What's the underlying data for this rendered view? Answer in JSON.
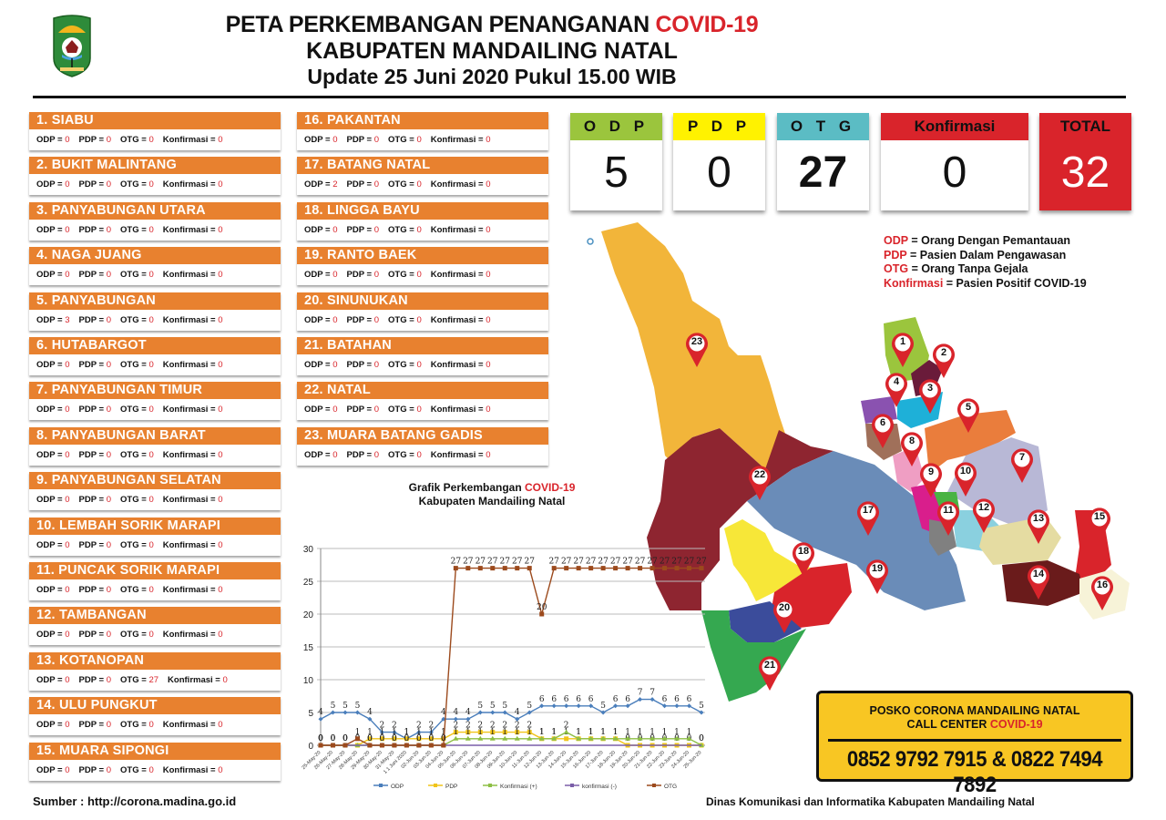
{
  "header": {
    "title_line1_prefix": "PETA PERKEMBANGAN PENANGANAN ",
    "title_line1_highlight": "COVID-19",
    "title_line2": "KABUPATEN MANDAILING NATAL",
    "title_line3": "Update 25 Juni  2020 Pukul 15.00 WIB",
    "logo": "kabupaten-mandailing-natal-emblem"
  },
  "stat_labels": {
    "odp": "ODP",
    "pdp": "PDP",
    "otg": "OTG",
    "konfirmasi": "Konfirmasi",
    "eq": " = "
  },
  "districts": [
    {
      "name": "1. SIABU",
      "odp": "0",
      "pdp": "0",
      "otg": "0",
      "konfirmasi": "0"
    },
    {
      "name": "2. BUKIT MALINTANG",
      "odp": "0",
      "pdp": "0",
      "otg": "0",
      "konfirmasi": "0"
    },
    {
      "name": "3. PANYABUNGAN UTARA",
      "odp": "0",
      "pdp": "0",
      "otg": "0",
      "konfirmasi": "0"
    },
    {
      "name": "4. NAGA JUANG",
      "odp": "0",
      "pdp": "0",
      "otg": "0",
      "konfirmasi": "0"
    },
    {
      "name": "5. PANYABUNGAN",
      "odp": "3",
      "pdp": "0",
      "otg": "0",
      "konfirmasi": "0"
    },
    {
      "name": "6. HUTABARGOT",
      "odp": "0",
      "pdp": "0",
      "otg": "0",
      "konfirmasi": "0"
    },
    {
      "name": "7. PANYABUNGAN TIMUR",
      "odp": "0",
      "pdp": "0",
      "otg": "0",
      "konfirmasi": "0"
    },
    {
      "name": "8. PANYABUNGAN BARAT",
      "odp": "0",
      "pdp": "0",
      "otg": "0",
      "konfirmasi": "0"
    },
    {
      "name": "9. PANYABUNGAN SELATAN",
      "odp": "0",
      "pdp": "0",
      "otg": "0",
      "konfirmasi": "0"
    },
    {
      "name": "10. LEMBAH SORIK MARAPI",
      "odp": "0",
      "pdp": "0",
      "otg": "0",
      "konfirmasi": "0"
    },
    {
      "name": "11. PUNCAK SORIK MARAPI",
      "odp": "0",
      "pdp": "0",
      "otg": "0",
      "konfirmasi": "0"
    },
    {
      "name": "12. TAMBANGAN",
      "odp": "0",
      "pdp": "0",
      "otg": "0",
      "konfirmasi": "0"
    },
    {
      "name": "13. KOTANOPAN",
      "odp": "0",
      "pdp": "0",
      "otg": "27",
      "konfirmasi": "0"
    },
    {
      "name": "14. ULU PUNGKUT",
      "odp": "0",
      "pdp": "0",
      "otg": "0",
      "konfirmasi": "0"
    },
    {
      "name": "15. MUARA SIPONGI",
      "odp": "0",
      "pdp": "0",
      "otg": "0",
      "konfirmasi": "0"
    },
    {
      "name": "16. PAKANTAN",
      "odp": "0",
      "pdp": "0",
      "otg": "0",
      "konfirmasi": "0"
    },
    {
      "name": "17. BATANG NATAL",
      "odp": "2",
      "pdp": "0",
      "otg": "0",
      "konfirmasi": "0"
    },
    {
      "name": "18. LINGGA BAYU",
      "odp": "0",
      "pdp": "0",
      "otg": "0",
      "konfirmasi": "0"
    },
    {
      "name": "19. RANTO BAEK",
      "odp": "0",
      "pdp": "0",
      "otg": "0",
      "konfirmasi": "0"
    },
    {
      "name": "20. SINUNUKAN",
      "odp": "0",
      "pdp": "0",
      "otg": "0",
      "konfirmasi": "0"
    },
    {
      "name": "21. BATAHAN",
      "odp": "0",
      "pdp": "0",
      "otg": "0",
      "konfirmasi": "0"
    },
    {
      "name": "22. NATAL",
      "odp": "0",
      "pdp": "0",
      "otg": "0",
      "konfirmasi": "0"
    },
    {
      "name": "23. MUARA BATANG GADIS",
      "odp": "0",
      "pdp": "0",
      "otg": "0",
      "konfirmasi": "0"
    }
  ],
  "summary": {
    "odp": {
      "label": "O D P",
      "value": "5",
      "color": "#9bc53d"
    },
    "pdp": {
      "label": "P D P",
      "value": "0",
      "color": "#fff200"
    },
    "otg": {
      "label": "O T G",
      "value": "27",
      "color": "#5bbcc4"
    },
    "konfirmasi": {
      "label": "Konfirmasi",
      "value": "0",
      "color": "#d9242b"
    },
    "total": {
      "label": "TOTAL",
      "value": "32",
      "color": "#d9242b"
    }
  },
  "definitions": [
    {
      "term": "ODP",
      "meaning": " = Orang Dengan Pemantauan"
    },
    {
      "term": "PDP",
      "meaning": " = Pasien Dalam Pengawasan"
    },
    {
      "term": "OTG",
      "meaning": " = Orang Tanpa Gejala"
    },
    {
      "term": "Konfirmasi",
      "meaning": " = Pasien Positif COVID-19"
    }
  ],
  "map": {
    "markers": [
      "1",
      "2",
      "3",
      "4",
      "5",
      "6",
      "7",
      "8",
      "9",
      "10",
      "11",
      "12",
      "13",
      "14",
      "15",
      "16",
      "17",
      "18",
      "19",
      "20",
      "21",
      "22",
      "23"
    ]
  },
  "chart_title": {
    "line1_prefix": "Grafik Perkembangan ",
    "line1_highlight": "COVID-19",
    "line2": "Kabupaten Mandailing Natal"
  },
  "chart_data": {
    "type": "line",
    "title": "Grafik Perkembangan COVID-19 Kabupaten Mandailing Natal",
    "xlabel": "",
    "ylabel": "",
    "ylim": [
      0,
      30
    ],
    "yticks": [
      0,
      5,
      10,
      15,
      20,
      25,
      30
    ],
    "grid": true,
    "legend_position": "bottom",
    "x": [
      "25-May-20",
      "26-May-20",
      "27-May-20",
      "28-May-20",
      "29-May-20",
      "30-May-20",
      "31-May-20",
      "1 1 Juni 2020",
      "02-Jun-20",
      "03-Jun-20",
      "04-Jun-20",
      "05-Jun-20",
      "06-Jun-20",
      "07-Jun-20",
      "08-Jun-20",
      "09-Jun-20",
      "10-Jun-20",
      "11-Jun-20",
      "12-Jun-20",
      "13-Jun-20",
      "14-Jun-20",
      "15-Jun-20",
      "16-Jun-20",
      "17-Jun-20",
      "18-Jun-20",
      "19-Jun-20",
      "20-Jun-20",
      "21-Jun-20",
      "22-Jun-20",
      "23-Jun-20",
      "24-Jun-20",
      "25-Jun-20"
    ],
    "series": [
      {
        "name": "ODP",
        "color": "#4a7ebb",
        "marker": "diamond",
        "values": [
          4,
          5,
          5,
          5,
          4,
          2,
          2,
          1,
          2,
          2,
          4,
          4,
          4,
          5,
          5,
          5,
          4,
          5,
          6,
          6,
          6,
          6,
          6,
          5,
          6,
          6,
          7,
          7,
          6,
          6,
          6,
          5
        ]
      },
      {
        "name": "PDP",
        "color": "#f0c419",
        "marker": "square",
        "values": [
          0,
          0,
          0,
          0,
          1,
          1,
          1,
          1,
          1,
          1,
          1,
          2,
          2,
          2,
          2,
          2,
          2,
          2,
          1,
          1,
          1,
          1,
          1,
          1,
          1,
          0,
          0,
          0,
          0,
          0,
          0,
          0
        ]
      },
      {
        "name": "Konfirmasi (+)",
        "color": "#8dbf45",
        "marker": "triangle",
        "values": [
          0,
          0,
          0,
          0,
          0,
          0,
          0,
          0,
          0,
          0,
          0,
          1,
          1,
          1,
          1,
          1,
          1,
          1,
          1,
          1,
          2,
          1,
          1,
          1,
          1,
          1,
          1,
          1,
          1,
          1,
          1,
          0
        ]
      },
      {
        "name": "konfirmasi (-)",
        "color": "#7a5ea8",
        "marker": "x",
        "values": [
          0,
          0,
          0,
          0,
          0,
          0,
          0,
          0,
          0,
          0,
          0,
          0,
          0,
          0,
          0,
          0,
          0,
          0,
          0,
          0,
          0,
          0,
          0,
          0,
          0,
          0,
          0,
          0,
          0,
          0,
          0,
          0
        ]
      },
      {
        "name": "OTG",
        "color": "#9c4a1d",
        "marker": "square",
        "values": [
          0,
          0,
          0,
          1,
          0,
          0,
          0,
          0,
          0,
          0,
          0,
          27,
          27,
          27,
          27,
          27,
          27,
          27,
          20,
          27,
          27,
          27,
          27,
          27,
          27,
          27,
          27,
          27,
          27,
          27,
          27,
          27
        ]
      }
    ]
  },
  "callcenter": {
    "line1": "POSKO CORONA MANDAILING NATAL",
    "line2_prefix": "CALL CENTER ",
    "line2_highlight": "COVID-19",
    "phones": "0852 9792 7915 & 0822 7494 7892"
  },
  "footer": {
    "source": "Sumber : http://corona.madina.go.id",
    "department": "Dinas Komunikasi dan Informatika Kabupaten Mandailing Natal"
  }
}
